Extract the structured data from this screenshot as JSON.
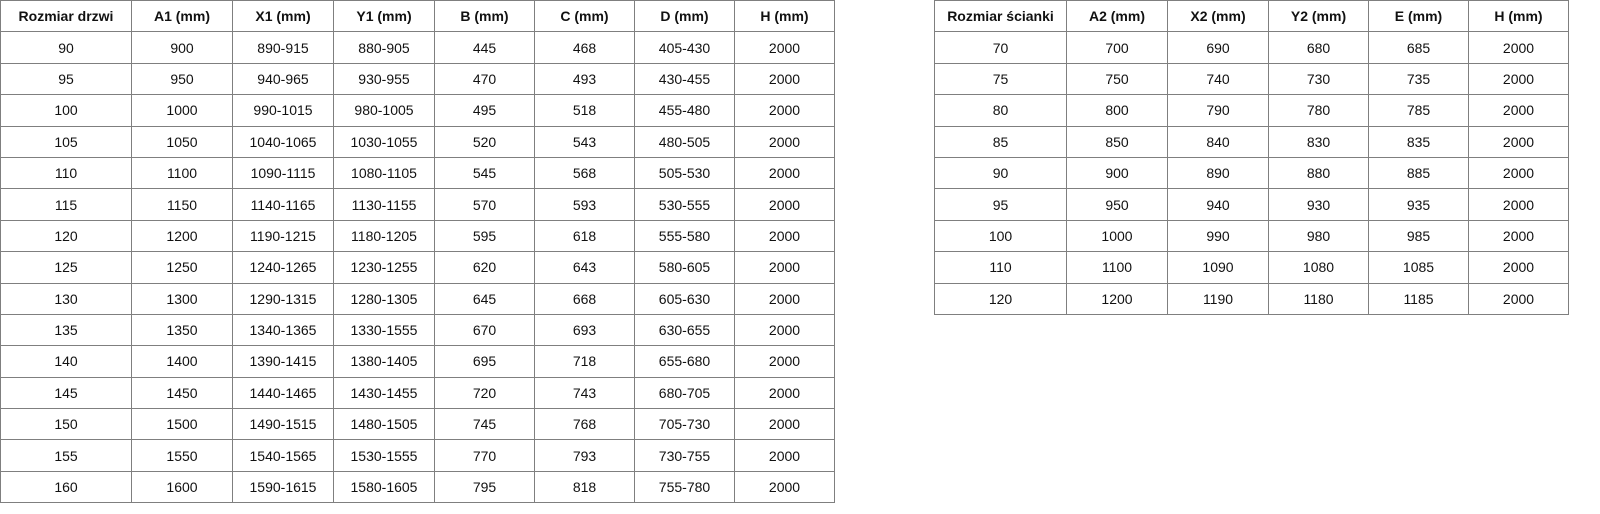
{
  "door_table": {
    "headers": [
      "Rozmiar drzwi",
      "A1 (mm)",
      "X1 (mm)",
      "Y1 (mm)",
      "B (mm)",
      "C (mm)",
      "D (mm)",
      "H (mm)"
    ],
    "rows": [
      [
        "90",
        "900",
        "890-915",
        "880-905",
        "445",
        "468",
        "405-430",
        "2000"
      ],
      [
        "95",
        "950",
        "940-965",
        "930-955",
        "470",
        "493",
        "430-455",
        "2000"
      ],
      [
        "100",
        "1000",
        "990-1015",
        "980-1005",
        "495",
        "518",
        "455-480",
        "2000"
      ],
      [
        "105",
        "1050",
        "1040-1065",
        "1030-1055",
        "520",
        "543",
        "480-505",
        "2000"
      ],
      [
        "110",
        "1100",
        "1090-1115",
        "1080-1105",
        "545",
        "568",
        "505-530",
        "2000"
      ],
      [
        "115",
        "1150",
        "1140-1165",
        "1130-1155",
        "570",
        "593",
        "530-555",
        "2000"
      ],
      [
        "120",
        "1200",
        "1190-1215",
        "1180-1205",
        "595",
        "618",
        "555-580",
        "2000"
      ],
      [
        "125",
        "1250",
        "1240-1265",
        "1230-1255",
        "620",
        "643",
        "580-605",
        "2000"
      ],
      [
        "130",
        "1300",
        "1290-1315",
        "1280-1305",
        "645",
        "668",
        "605-630",
        "2000"
      ],
      [
        "135",
        "1350",
        "1340-1365",
        "1330-1555",
        "670",
        "693",
        "630-655",
        "2000"
      ],
      [
        "140",
        "1400",
        "1390-1415",
        "1380-1405",
        "695",
        "718",
        "655-680",
        "2000"
      ],
      [
        "145",
        "1450",
        "1440-1465",
        "1430-1455",
        "720",
        "743",
        "680-705",
        "2000"
      ],
      [
        "150",
        "1500",
        "1490-1515",
        "1480-1505",
        "745",
        "768",
        "705-730",
        "2000"
      ],
      [
        "155",
        "1550",
        "1540-1565",
        "1530-1555",
        "770",
        "793",
        "730-755",
        "2000"
      ],
      [
        "160",
        "1600",
        "1590-1615",
        "1580-1605",
        "795",
        "818",
        "755-780",
        "2000"
      ]
    ]
  },
  "wall_table": {
    "headers": [
      "Rozmiar ścianki",
      "A2 (mm)",
      "X2 (mm)",
      "Y2 (mm)",
      "E (mm)",
      "H (mm)"
    ],
    "rows": [
      [
        "70",
        "700",
        "690",
        "680",
        "685",
        "2000"
      ],
      [
        "75",
        "750",
        "740",
        "730",
        "735",
        "2000"
      ],
      [
        "80",
        "800",
        "790",
        "780",
        "785",
        "2000"
      ],
      [
        "85",
        "850",
        "840",
        "830",
        "835",
        "2000"
      ],
      [
        "90",
        "900",
        "890",
        "880",
        "885",
        "2000"
      ],
      [
        "95",
        "950",
        "940",
        "930",
        "935",
        "2000"
      ],
      [
        "100",
        "1000",
        "990",
        "980",
        "985",
        "2000"
      ],
      [
        "110",
        "1100",
        "1090",
        "1080",
        "1085",
        "2000"
      ],
      [
        "120",
        "1200",
        "1190",
        "1180",
        "1185",
        "2000"
      ]
    ]
  }
}
